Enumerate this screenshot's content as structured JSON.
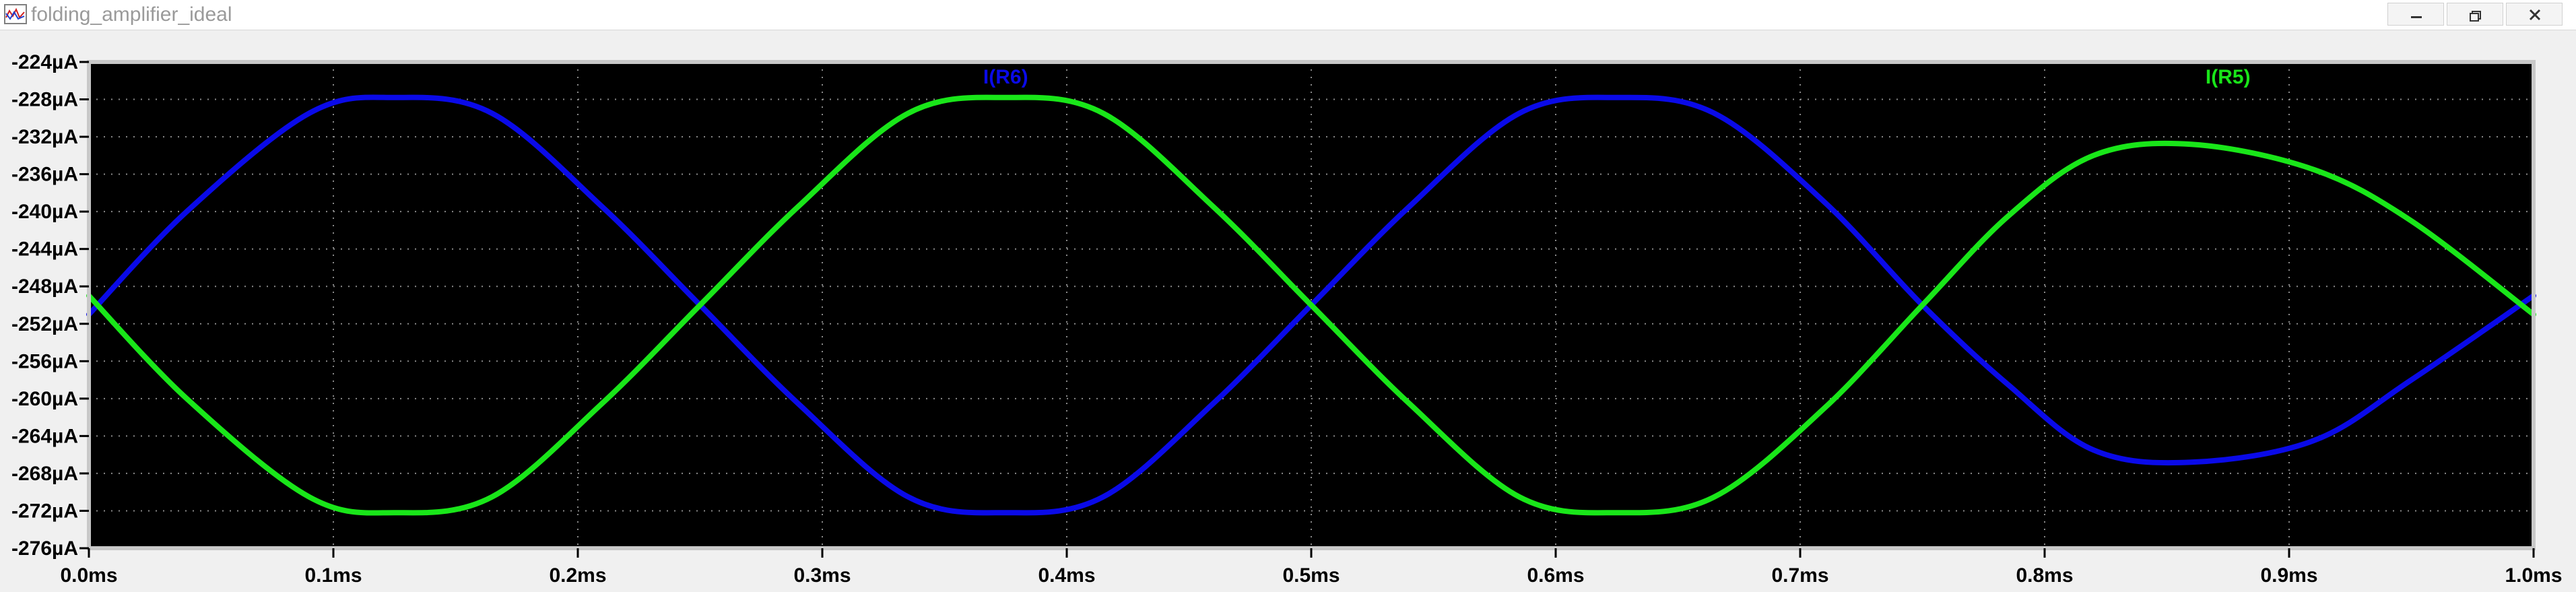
{
  "window": {
    "title": "folding_amplifier_ideal",
    "controls": [
      "minimize",
      "restore",
      "close"
    ]
  },
  "colors": {
    "plot_background": "#000000",
    "grid": "#8a8a8a",
    "frame": "#c8c8c8",
    "series_r6": "#0a0ae8",
    "series_r5": "#19e619",
    "axis_text": "#000000"
  },
  "chart_data": {
    "type": "line",
    "title": "",
    "xlabel": "",
    "ylabel": "",
    "xlim": [
      0,
      1.0
    ],
    "ylim": [
      -276,
      -224
    ],
    "x_unit": "ms",
    "y_unit": "µA",
    "grid": true,
    "x_ticks": [
      "0.0ms",
      "0.1ms",
      "0.2ms",
      "0.3ms",
      "0.4ms",
      "0.5ms",
      "0.6ms",
      "0.7ms",
      "0.8ms",
      "0.9ms",
      "1.0ms"
    ],
    "x_tick_values": [
      0,
      0.1,
      0.2,
      0.3,
      0.4,
      0.5,
      0.6,
      0.7,
      0.8,
      0.9,
      1.0
    ],
    "y_ticks": [
      "-224µA",
      "-228µA",
      "-232µA",
      "-236µA",
      "-240µA",
      "-244µA",
      "-248µA",
      "-252µA",
      "-256µA",
      "-260µA",
      "-264µA",
      "-268µA",
      "-272µA",
      "-276µA"
    ],
    "y_tick_values": [
      -224,
      -228,
      -232,
      -236,
      -240,
      -244,
      -248,
      -252,
      -256,
      -260,
      -264,
      -268,
      -272,
      -276
    ],
    "series": [
      {
        "name": "I(R6)",
        "color": "#0a0ae8",
        "x": [
          0,
          0.04,
          0.09,
          0.125,
          0.165,
          0.21,
          0.25,
          0.29,
          0.335,
          0.375,
          0.415,
          0.46,
          0.5,
          0.54,
          0.585,
          0.625,
          0.665,
          0.71,
          0.75,
          0.785,
          0.82,
          0.86,
          0.91,
          0.95,
          1.0
        ],
        "y": [
          -251,
          -240,
          -229.5,
          -227.8,
          -229.5,
          -239.5,
          -250,
          -260.5,
          -270.5,
          -272.2,
          -270.5,
          -260.5,
          -250,
          -239.5,
          -229.5,
          -227.8,
          -229.5,
          -239,
          -250,
          -258.5,
          -265.5,
          -266.8,
          -264.5,
          -258,
          -249
        ]
      },
      {
        "name": "I(R5)",
        "color": "#19e619",
        "x": [
          0,
          0.04,
          0.09,
          0.125,
          0.165,
          0.21,
          0.25,
          0.29,
          0.335,
          0.375,
          0.415,
          0.46,
          0.5,
          0.54,
          0.585,
          0.625,
          0.665,
          0.71,
          0.75,
          0.785,
          0.82,
          0.86,
          0.91,
          0.95,
          1.0
        ],
        "y": [
          -249,
          -260,
          -270.5,
          -272.2,
          -270.5,
          -260.5,
          -250,
          -239.5,
          -229.5,
          -227.8,
          -229.5,
          -239.5,
          -250,
          -260.5,
          -270.5,
          -272.2,
          -270.5,
          -261,
          -250,
          -240.5,
          -234,
          -232.8,
          -235.5,
          -241,
          -251
        ]
      }
    ]
  }
}
